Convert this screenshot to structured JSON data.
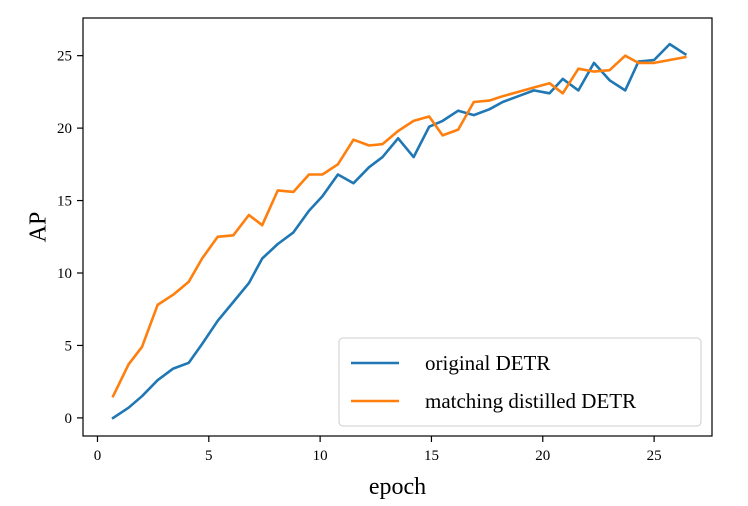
{
  "chart_data": {
    "type": "line",
    "xlabel": "epoch",
    "ylabel": "AP",
    "xlim": [
      -0.65,
      27.6
    ],
    "ylim": [
      -1.25,
      27.6
    ],
    "xticks": [
      0,
      5,
      10,
      15,
      20,
      25
    ],
    "yticks": [
      0,
      5,
      10,
      15,
      20,
      25
    ],
    "grid": false,
    "legend_position": "bottom-right",
    "series": [
      {
        "name": "original DETR",
        "color": "#1f77b4",
        "x": [
          0.7,
          1.4,
          2.0,
          2.7,
          3.4,
          4.1,
          4.7,
          5.4,
          6.1,
          6.8,
          7.4,
          8.1,
          8.8,
          9.5,
          10.1,
          10.8,
          11.5,
          12.2,
          12.8,
          13.5,
          14.2,
          14.9,
          15.5,
          16.2,
          16.9,
          17.6,
          18.2,
          18.9,
          19.6,
          20.3,
          20.9,
          21.6,
          22.3,
          23.0,
          23.7,
          24.3,
          25.0,
          25.7,
          26.4
        ],
        "y": [
          0.0,
          0.7,
          1.5,
          2.6,
          3.4,
          3.8,
          5.1,
          6.7,
          8.0,
          9.3,
          11.0,
          12.0,
          12.8,
          14.3,
          15.3,
          16.8,
          16.2,
          17.3,
          18.0,
          19.3,
          18.0,
          20.1,
          20.5,
          21.2,
          20.9,
          21.3,
          21.8,
          22.2,
          22.6,
          22.4,
          23.4,
          22.6,
          24.5,
          23.3,
          22.6,
          24.6,
          24.7,
          25.8,
          25.1
        ]
      },
      {
        "name": "matching distilled DETR",
        "color": "#ff7f0e",
        "x": [
          0.7,
          1.4,
          2.0,
          2.7,
          3.4,
          4.1,
          4.7,
          5.4,
          6.1,
          6.8,
          7.4,
          8.1,
          8.8,
          9.5,
          10.1,
          10.8,
          11.5,
          12.2,
          12.8,
          13.5,
          14.2,
          14.9,
          15.5,
          16.2,
          16.9,
          17.6,
          18.2,
          18.9,
          19.6,
          20.3,
          20.9,
          21.6,
          22.3,
          23.0,
          23.7,
          24.3,
          25.0,
          25.7,
          26.4
        ],
        "y": [
          1.5,
          3.7,
          4.9,
          7.8,
          8.5,
          9.4,
          11.0,
          12.5,
          12.6,
          14.0,
          13.3,
          15.7,
          15.6,
          16.8,
          16.8,
          17.5,
          19.2,
          18.8,
          18.9,
          19.8,
          20.5,
          20.8,
          19.5,
          19.9,
          21.8,
          21.9,
          22.2,
          22.5,
          22.8,
          23.1,
          22.4,
          24.1,
          23.9,
          24.0,
          25.0,
          24.5,
          24.5,
          24.7,
          24.9
        ]
      }
    ]
  }
}
